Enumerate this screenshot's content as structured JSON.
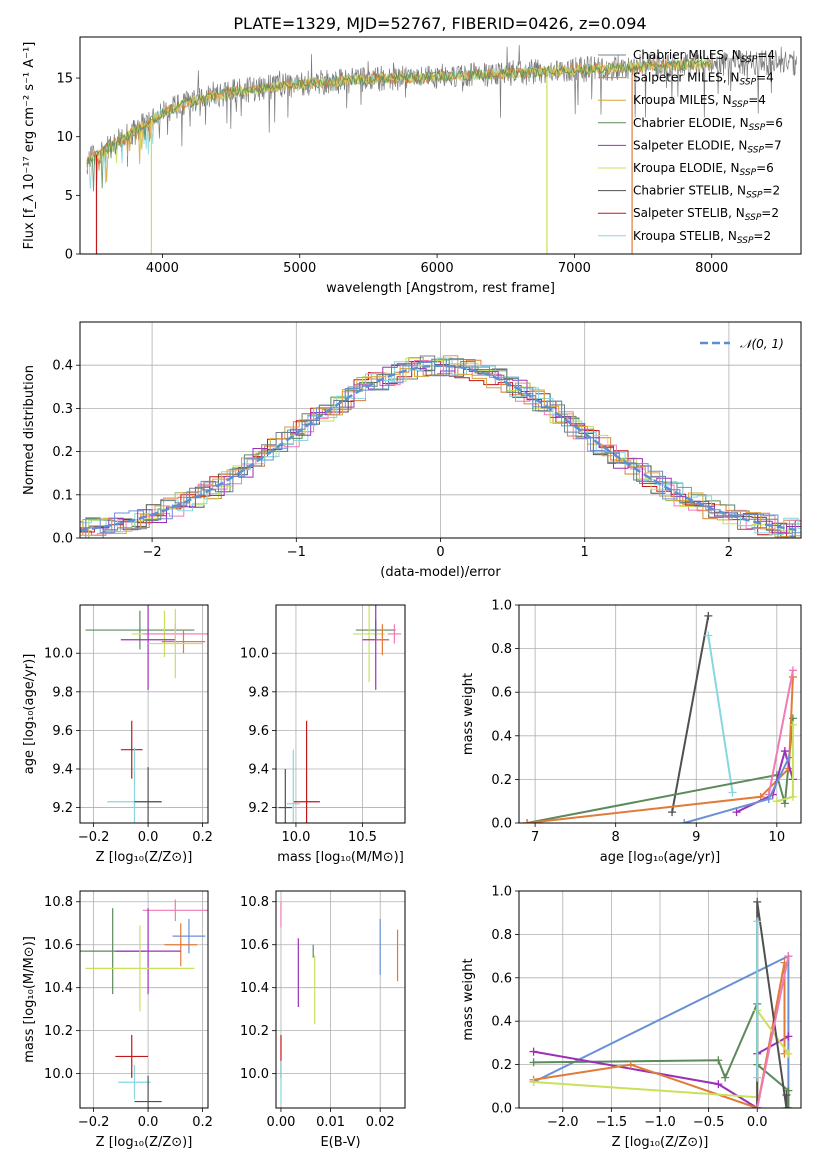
{
  "title": "PLATE=1329, MJD=52767, FIBERID=0426, z=0.094",
  "palette": {
    "Chabrier MILES": "#708090",
    "Salpeter MILES": "#e07b39",
    "Kroupa MILES": "#d9a33a",
    "Chabrier ELODIE": "#5b8a5b",
    "Salpeter ELODIE": "#9b30b8",
    "Kroupa ELODIE": "#c8e05a",
    "Chabrier STELIB": "#505050",
    "Salpeter STELIB": "#c21818",
    "Kroupa STELIB": "#86d7e0",
    "extra_pink": "#f07ab5",
    "extra_blue": "#6a90d6",
    "normal_curve": "#5b8fd4",
    "grid": "#b0b0b0"
  },
  "chart_data": [
    {
      "id": "spectrum",
      "type": "line",
      "title": "PLATE=1329, MJD=52767, FIBERID=0426, z=0.094",
      "xlabel": "wavelength [Angstrom, rest frame]",
      "ylabel": "Flux [f_λ 10⁻¹⁷ erg cm⁻² s⁻¹ A⁻¹]",
      "xlim": [
        3400,
        8650
      ],
      "ylim": [
        0,
        18.5
      ],
      "xticks": [
        4000,
        5000,
        6000,
        7000,
        8000
      ],
      "yticks": [
        0,
        5,
        10,
        15
      ],
      "grid": false,
      "legend_position": "top-right",
      "legend": [
        {
          "label": "Chabrier MILES",
          "nssp": 4
        },
        {
          "label": "Salpeter MILES",
          "nssp": 4
        },
        {
          "label": "Kroupa MILES",
          "nssp": 4
        },
        {
          "label": "Chabrier ELODIE",
          "nssp": 6
        },
        {
          "label": "Salpeter ELODIE",
          "nssp": 7
        },
        {
          "label": "Kroupa ELODIE",
          "nssp": 6
        },
        {
          "label": "Chabrier STELIB",
          "nssp": 2
        },
        {
          "label": "Salpeter STELIB",
          "nssp": 2
        },
        {
          "label": "Kroupa STELIB",
          "nssp": 2
        }
      ],
      "continuum": {
        "x": [
          3450,
          3600,
          3800,
          4000,
          4200,
          4500,
          5000,
          5500,
          6000,
          6500,
          7000,
          7500,
          8000,
          8500
        ],
        "y": [
          8.0,
          9.0,
          10.5,
          12.0,
          13.0,
          13.8,
          14.5,
          14.9,
          15.1,
          15.4,
          15.7,
          16.0,
          16.2,
          16.3
        ]
      },
      "model_drops": [
        {
          "x": 3520,
          "series": "Salpeter STELIB",
          "ymin": 0
        },
        {
          "x": 3920,
          "series": "Kroupa ELODIE",
          "ymin": 0
        },
        {
          "x": 6800,
          "series": "Kroupa ELODIE",
          "ymin": 0
        },
        {
          "x": 7420,
          "series": "Salpeter MILES",
          "ymin": 0
        }
      ]
    },
    {
      "id": "residuals",
      "type": "line",
      "xlabel": "(data-model)/error",
      "ylabel": "Normed distribution",
      "xlim": [
        -2.5,
        2.5
      ],
      "ylim": [
        0,
        0.5
      ],
      "xticks": [
        -2,
        -1,
        0,
        1,
        2
      ],
      "xtick_labels": [
        "−2",
        "−1",
        "0",
        "1",
        "2"
      ],
      "yticks": [
        0.0,
        0.1,
        0.2,
        0.3,
        0.4
      ],
      "ytick_labels": [
        "0.0",
        "0.1",
        "0.2",
        "0.3",
        "0.4"
      ],
      "grid": true,
      "legend_position": "top-right",
      "legend": [
        {
          "label": "𝒩(0, 1)",
          "style": "dashed"
        }
      ],
      "bin_width": 0.1,
      "histogram_series": 11
    },
    {
      "id": "age_vs_Z",
      "type": "scatter",
      "xlabel": "Z [log₁₀(Z/Z⊙)]",
      "ylabel": "age  [log₁₀(age/yr)]",
      "xlim": [
        -0.25,
        0.22
      ],
      "ylim": [
        9.12,
        10.25
      ],
      "xticks": [
        -0.2,
        0.0,
        0.2
      ],
      "xtick_labels": [
        "−0.2",
        "0.0",
        "0.2"
      ],
      "yticks": [
        9.2,
        9.4,
        9.6,
        9.8,
        10.0
      ],
      "ytick_labels": [
        "9.2",
        "9.4",
        "9.6",
        "9.8",
        "10.0"
      ],
      "grid": true,
      "points": [
        {
          "series": "Chabrier ELODIE",
          "x": -0.03,
          "xerr": 0.2,
          "y": 10.12,
          "yerr": 0.1
        },
        {
          "series": "Kroupa ELODIE",
          "x": 0.06,
          "xerr": 0.12,
          "y": 10.1,
          "yerr": 0.12
        },
        {
          "series": "extra_pink",
          "x": 0.1,
          "xerr": 0.12,
          "y": 10.1,
          "yerr": 0.05
        },
        {
          "series": "Salpeter ELODIE",
          "x": 0.0,
          "xerr": 0.1,
          "y": 10.07,
          "yerr": 0.26
        },
        {
          "series": "Salpeter MILES",
          "x": 0.13,
          "xerr": 0.08,
          "y": 10.06,
          "yerr": 0.06
        },
        {
          "series": "Kroupa ELODIE",
          "x": 0.1,
          "xerr": 0.1,
          "y": 10.05,
          "yerr": 0.18
        },
        {
          "series": "Salpeter STELIB",
          "x": -0.06,
          "xerr": 0.04,
          "y": 9.5,
          "yerr": 0.15
        },
        {
          "series": "Kroupa STELIB",
          "x": -0.05,
          "xerr": 0.1,
          "y": 9.23,
          "yerr": 0.28
        },
        {
          "series": "Chabrier STELIB",
          "x": 0.0,
          "xerr": 0.05,
          "y": 9.23,
          "yerr": 0.18
        }
      ]
    },
    {
      "id": "age_vs_mass",
      "type": "scatter",
      "xlabel": "mass [log₁₀(M/M⊙)]",
      "ylabel": "",
      "xlim": [
        9.85,
        10.82
      ],
      "ylim": [
        9.12,
        10.25
      ],
      "xticks": [
        10.0,
        10.5
      ],
      "xtick_labels": [
        "10.0",
        "10.5"
      ],
      "yticks": [
        9.2,
        9.4,
        9.6,
        9.8,
        10.0
      ],
      "ytick_labels": [
        "9.2",
        "9.4",
        "9.6",
        "9.8",
        "10.0"
      ],
      "grid": true,
      "points": [
        {
          "series": "Chabrier ELODIE",
          "x": 10.6,
          "xerr": 0.15,
          "y": 10.12,
          "yerr": 0.05
        },
        {
          "series": "Kroupa ELODIE",
          "x": 10.55,
          "xerr": 0.12,
          "y": 10.1,
          "yerr": 0.25
        },
        {
          "series": "extra_pink",
          "x": 10.74,
          "xerr": 0.05,
          "y": 10.1,
          "yerr": 0.05
        },
        {
          "series": "Salpeter ELODIE",
          "x": 10.6,
          "xerr": 0.1,
          "y": 10.07,
          "yerr": 0.26
        },
        {
          "series": "Salpeter MILES",
          "x": 10.65,
          "xerr": 0.05,
          "y": 10.07,
          "yerr": 0.08
        },
        {
          "series": "Salpeter STELIB",
          "x": 10.08,
          "xerr": 0.1,
          "y": 9.23,
          "yerr": 0.42
        },
        {
          "series": "Kroupa STELIB",
          "x": 9.98,
          "xerr": 0.05,
          "y": 9.22,
          "yerr": 0.28
        },
        {
          "series": "Chabrier STELIB",
          "x": 9.92,
          "xerr": 0.05,
          "y": 9.2,
          "yerr": 0.2
        }
      ]
    },
    {
      "id": "weight_vs_age",
      "type": "line",
      "xlabel": "age  [log₁₀(age/yr)]",
      "ylabel": "mass weight",
      "xlim": [
        6.8,
        10.3
      ],
      "ylim": [
        0,
        1.0
      ],
      "xticks": [
        7,
        8,
        9,
        10
      ],
      "yticks": [
        0.0,
        0.2,
        0.4,
        0.6,
        0.8,
        1.0
      ],
      "ytick_labels": [
        "0.0",
        "0.2",
        "0.4",
        "0.6",
        "0.8",
        "1.0"
      ],
      "grid": true,
      "series": [
        {
          "name": "Chabrier STELIB",
          "x": [
            8.7,
            9.15
          ],
          "y": [
            0.05,
            0.95
          ]
        },
        {
          "name": "Kroupa STELIB",
          "x": [
            9.15,
            9.45
          ],
          "y": [
            0.86,
            0.14
          ]
        },
        {
          "name": "Chabrier ELODIE",
          "x": [
            6.9,
            10.0,
            10.1,
            10.2
          ],
          "y": [
            0.0,
            0.22,
            0.09,
            0.48
          ]
        },
        {
          "name": "Salpeter MILES",
          "x": [
            6.9,
            9.8,
            10.15,
            10.2
          ],
          "y": [
            0.0,
            0.12,
            0.25,
            0.67
          ]
        },
        {
          "name": "Salpeter ELODIE",
          "x": [
            9.5,
            9.95,
            10.1,
            10.2
          ],
          "y": [
            0.05,
            0.13,
            0.33,
            0.2
          ]
        },
        {
          "name": "extra_pink",
          "x": [
            9.9,
            10.2
          ],
          "y": [
            0.13,
            0.7
          ]
        },
        {
          "name": "extra_blue",
          "x": [
            8.85,
            9.9,
            10.15
          ],
          "y": [
            0.0,
            0.11,
            0.3
          ]
        },
        {
          "name": "Kroupa ELODIE",
          "x": [
            10.0,
            10.2,
            10.2
          ],
          "y": [
            0.1,
            0.12,
            0.45
          ]
        }
      ]
    },
    {
      "id": "mass_vs_Z",
      "type": "scatter",
      "xlabel": "Z [log₁₀(Z/Z⊙)]",
      "ylabel": "mass [log₁₀(M/M⊙)]",
      "xlim": [
        -0.25,
        0.22
      ],
      "ylim": [
        9.84,
        10.85
      ],
      "xticks": [
        -0.2,
        0.0,
        0.2
      ],
      "xtick_labels": [
        "−0.2",
        "0.0",
        "0.2"
      ],
      "yticks": [
        10.0,
        10.2,
        10.4,
        10.6,
        10.8
      ],
      "ytick_labels": [
        "10.0",
        "10.2",
        "10.4",
        "10.6",
        "10.8"
      ],
      "grid": true,
      "points": [
        {
          "series": "extra_pink",
          "x": 0.1,
          "xerr": 0.12,
          "y": 10.76,
          "yerr": 0.05
        },
        {
          "series": "extra_blue",
          "x": 0.15,
          "xerr": 0.06,
          "y": 10.64,
          "yerr": 0.08
        },
        {
          "series": "Salpeter MILES",
          "x": 0.12,
          "xerr": 0.06,
          "y": 10.6,
          "yerr": 0.1
        },
        {
          "series": "Chabrier ELODIE",
          "x": -0.13,
          "xerr": 0.12,
          "y": 10.57,
          "yerr": 0.2
        },
        {
          "series": "Salpeter ELODIE",
          "x": 0.0,
          "xerr": 0.12,
          "y": 10.57,
          "yerr": 0.2
        },
        {
          "series": "Kroupa ELODIE",
          "x": -0.03,
          "xerr": 0.2,
          "y": 10.49,
          "yerr": 0.2
        },
        {
          "series": "Salpeter STELIB",
          "x": -0.06,
          "xerr": 0.06,
          "y": 10.08,
          "yerr": 0.1
        },
        {
          "series": "Kroupa STELIB",
          "x": -0.05,
          "xerr": 0.06,
          "y": 9.96,
          "yerr": 0.08
        },
        {
          "series": "Chabrier STELIB",
          "x": 0.0,
          "xerr": 0.05,
          "y": 9.87,
          "yerr": 0.12
        }
      ]
    },
    {
      "id": "mass_vs_ebv",
      "type": "scatter",
      "xlabel": "E(B-V)",
      "ylabel": "",
      "xlim": [
        -0.001,
        0.025
      ],
      "ylim": [
        9.84,
        10.85
      ],
      "xticks": [
        0.0,
        0.01,
        0.02
      ],
      "xtick_labels": [
        "0.00",
        "0.01",
        "0.02"
      ],
      "yticks": [
        10.0,
        10.2,
        10.4,
        10.6,
        10.8
      ],
      "ytick_labels": [
        "10.0",
        "10.2",
        "10.4",
        "10.6",
        "10.8"
      ],
      "grid": true,
      "points": [
        {
          "series": "extra_pink",
          "x": 0.0,
          "y": 10.74,
          "yerr": 0.06
        },
        {
          "series": "Salpeter STELIB",
          "x": 0.0,
          "y": 10.08,
          "yerr": 0.1
        },
        {
          "series": "Kroupa STELIB",
          "x": 0.0,
          "y": 9.96,
          "yerr": 0.1
        },
        {
          "series": "Salpeter ELODIE",
          "x": 0.0035,
          "y": 10.47,
          "yerr": 0.16
        },
        {
          "series": "Chabrier ELODIE",
          "x": 0.0065,
          "y": 10.57,
          "yerr": 0.03
        },
        {
          "series": "Kroupa ELODIE",
          "x": 0.0068,
          "y": 10.39,
          "yerr": 0.16
        },
        {
          "series": "extra_blue",
          "x": 0.02,
          "y": 10.59,
          "yerr": 0.13
        },
        {
          "series": "Salpeter MILES",
          "x": 0.0235,
          "y": 10.55,
          "yerr": 0.12
        }
      ]
    },
    {
      "id": "weight_vs_Z",
      "type": "line",
      "xlabel": "Z [log₁₀(Z/Z⊙)]",
      "ylabel": "mass weight",
      "xlim": [
        -2.45,
        0.45
      ],
      "ylim": [
        0,
        1.0
      ],
      "xticks": [
        -2.0,
        -1.5,
        -1.0,
        -0.5,
        0.0
      ],
      "xtick_labels": [
        "−2.0",
        "−1.5",
        "−1.0",
        "−0.5",
        "0.0"
      ],
      "yticks": [
        0.0,
        0.2,
        0.4,
        0.6,
        0.8,
        1.0
      ],
      "ytick_labels": [
        "0.0",
        "0.2",
        "0.4",
        "0.6",
        "0.8",
        "1.0"
      ],
      "grid": true,
      "series": [
        {
          "name": "extra_blue",
          "x": [
            -2.3,
            0.32,
            0.32
          ],
          "y": [
            0.12,
            0.7,
            0.0
          ]
        },
        {
          "name": "Chabrier ELODIE",
          "x": [
            -2.3,
            -0.4,
            -0.33,
            0.0,
            0.0,
            0.32,
            0.32
          ],
          "y": [
            0.21,
            0.22,
            0.14,
            0.48,
            0.2,
            0.08,
            0.0
          ]
        },
        {
          "name": "Salpeter ELODIE",
          "x": [
            -2.3,
            -0.4,
            0.0,
            0.0,
            0.32
          ],
          "y": [
            0.26,
            0.11,
            0.0,
            0.25,
            0.33
          ]
        },
        {
          "name": "Salpeter MILES",
          "x": [
            -2.3,
            -1.3,
            0.0,
            0.28,
            0.28
          ],
          "y": [
            0.13,
            0.2,
            0.0,
            0.67,
            0.25
          ]
        },
        {
          "name": "Kroupa ELODIE",
          "x": [
            -2.3,
            0.0,
            0.0,
            0.32
          ],
          "y": [
            0.12,
            0.05,
            0.45,
            0.25
          ]
        },
        {
          "name": "Chabrier STELIB",
          "x": [
            0.0,
            0.0,
            0.3,
            0.3
          ],
          "y": [
            0.0,
            0.95,
            0.0,
            0.06
          ]
        },
        {
          "name": "Kroupa STELIB",
          "x": [
            0.0,
            0.0
          ],
          "y": [
            0.14,
            0.86
          ]
        },
        {
          "name": "extra_pink",
          "x": [
            0.0,
            0.32
          ],
          "y": [
            0.0,
            0.7
          ]
        }
      ]
    }
  ]
}
